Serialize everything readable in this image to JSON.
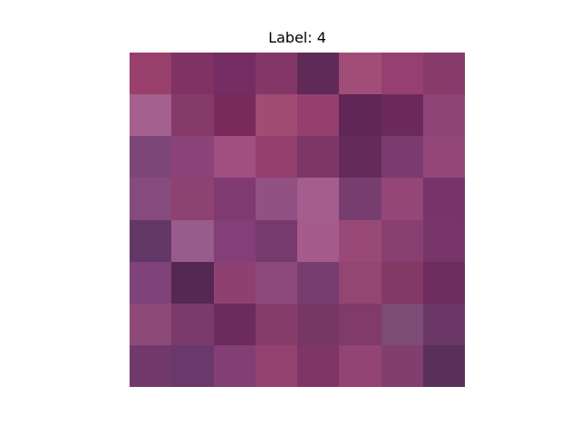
{
  "title": "Label: 4",
  "image": {
    "rows": 8,
    "cols": 8,
    "pixels": [
      [
        "#993f6b",
        "#7f3263",
        "#742e63",
        "#843668",
        "#602a58",
        "#a04d78",
        "#963f71",
        "#883a6b"
      ],
      [
        "#a4608e",
        "#853a6a",
        "#782a5b",
        "#a14c75",
        "#963f6e",
        "#5f2656",
        "#6c2a5c",
        "#8f4478"
      ],
      [
        "#7c4676",
        "#8a4379",
        "#a14e80",
        "#943f6e",
        "#7d3766",
        "#642a5a",
        "#7b3b6e",
        "#934677"
      ],
      [
        "#864a7e",
        "#8e4272",
        "#7f3a72",
        "#915183",
        "#a45e8d",
        "#773d6e",
        "#944676",
        "#78346a"
      ],
      [
        "#633766",
        "#975c8b",
        "#823f78",
        "#773a6d",
        "#a75b8c",
        "#984975",
        "#873f71",
        "#773569"
      ],
      [
        "#7f4379",
        "#552753",
        "#8e4171",
        "#8c4a7c",
        "#773d70",
        "#944673",
        "#843866",
        "#6d2c5e"
      ],
      [
        "#8d4a78",
        "#7b3a6c",
        "#6b2b5c",
        "#863d6b",
        "#773766",
        "#803a6c",
        "#7c4b76",
        "#6a3766"
      ],
      [
        "#723a6a",
        "#6a386a",
        "#833f75",
        "#91426f",
        "#7f3566",
        "#924574",
        "#823e6d",
        "#593059"
      ]
    ]
  }
}
